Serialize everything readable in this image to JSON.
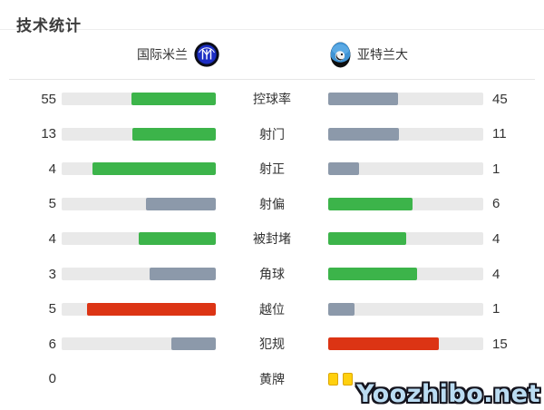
{
  "page": {
    "title": "技术统计",
    "watermark": "Yoozhibo.net"
  },
  "teams": {
    "home": {
      "name": "国际米兰",
      "logo_icon": "inter-milan-crest"
    },
    "away": {
      "name": "亚特兰大",
      "logo_icon": "atalanta-crest"
    }
  },
  "colors": {
    "green": "#3cb44a",
    "slate": "#8c99aa",
    "red": "#dc3414",
    "track": "#e9e9e9",
    "yellow_card": "#ffd00e",
    "yellow_card_border": "#dca600",
    "text": "#333333"
  },
  "chart_data": {
    "type": "bar",
    "title": "技术统计",
    "layout": "paired horizontal bars; home bar fills right-to-left, away bar fills left-to-right; fill fraction = value/(home+away); green = leading good stat, slate = trailing, red = leading bad stat",
    "teams": [
      "国际米兰",
      "亚特兰大"
    ],
    "rows": [
      {
        "label": "控球率",
        "home": 55,
        "away": 45,
        "home_color": "green",
        "away_color": "slate"
      },
      {
        "label": "射门",
        "home": 13,
        "away": 11,
        "home_color": "green",
        "away_color": "slate"
      },
      {
        "label": "射正",
        "home": 4,
        "away": 1,
        "home_color": "green",
        "away_color": "slate"
      },
      {
        "label": "射偏",
        "home": 5,
        "away": 6,
        "home_color": "slate",
        "away_color": "green"
      },
      {
        "label": "被封堵",
        "home": 4,
        "away": 4,
        "home_color": "green",
        "away_color": "green"
      },
      {
        "label": "角球",
        "home": 3,
        "away": 4,
        "home_color": "slate",
        "away_color": "green"
      },
      {
        "label": "越位",
        "home": 5,
        "away": 1,
        "home_color": "red",
        "away_color": "slate"
      },
      {
        "label": "犯规",
        "home": 6,
        "away": 15,
        "home_color": "slate",
        "away_color": "red"
      },
      {
        "label": "黄牌",
        "type": "cards",
        "home": 0,
        "home_text": "0",
        "away_text": "",
        "away_cards": 2
      }
    ]
  }
}
